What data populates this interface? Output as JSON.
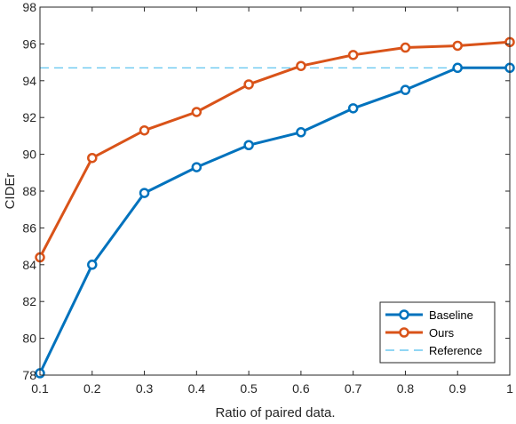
{
  "chart_data": {
    "type": "line",
    "title": "",
    "xlabel": "Ratio of paired data.",
    "ylabel": "CIDEr",
    "xlim": [
      0.1,
      1.0
    ],
    "ylim": [
      78,
      98
    ],
    "xticks": [
      0.1,
      0.2,
      0.3,
      0.4,
      0.5,
      0.6,
      0.7,
      0.8,
      0.9,
      1.0
    ],
    "xtick_labels": [
      "0.1",
      "0.2",
      "0.3",
      "0.4",
      "0.5",
      "0.6",
      "0.7",
      "0.8",
      "0.9",
      "1"
    ],
    "yticks": [
      78,
      80,
      82,
      84,
      86,
      88,
      90,
      92,
      94,
      96,
      98
    ],
    "ytick_labels": [
      "78",
      "80",
      "82",
      "84",
      "86",
      "88",
      "90",
      "92",
      "94",
      "96",
      "98"
    ],
    "x": [
      0.1,
      0.2,
      0.3,
      0.4,
      0.5,
      0.6,
      0.7,
      0.8,
      0.9,
      1.0
    ],
    "series": [
      {
        "name": "Baseline",
        "color": "#0072BD",
        "marker": "circle",
        "line_style": "solid",
        "values": [
          78.1,
          84.0,
          87.9,
          89.3,
          90.5,
          91.2,
          92.5,
          93.5,
          94.7,
          94.7
        ]
      },
      {
        "name": "Ours",
        "color": "#D95319",
        "marker": "circle",
        "line_style": "solid",
        "values": [
          84.4,
          89.8,
          91.3,
          92.3,
          93.8,
          94.8,
          95.4,
          95.8,
          95.9,
          96.1
        ]
      }
    ],
    "reference": {
      "name": "Reference",
      "color": "#4DBEEE",
      "line_style": "dashed",
      "value": 94.7
    },
    "legend": {
      "placement": "bottom-right",
      "box": true
    },
    "grid": false
  }
}
